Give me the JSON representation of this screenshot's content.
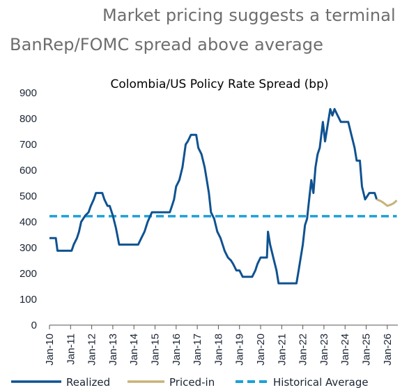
{
  "headline": {
    "line1": "Market pricing suggests a terminal",
    "line2": "BanRep/FOMC spread above average"
  },
  "colors": {
    "realized": "#0f5291",
    "priced_in": "#c8b27a",
    "historical_average": "#1ea0d8",
    "axis": "#555555",
    "text": "#1b2433"
  },
  "chart_data": {
    "type": "line",
    "title": "Colombia/US Policy Rate Spread (bp)",
    "xlabel": "",
    "ylabel": "",
    "ylim": [
      0,
      900
    ],
    "yticks": [
      0,
      100,
      200,
      300,
      400,
      500,
      600,
      700,
      800,
      900
    ],
    "xlim": [
      2010.0,
      2026.5
    ],
    "xticks": [
      {
        "x": 2010,
        "label": "Jan-10"
      },
      {
        "x": 2011,
        "label": "Jan-11"
      },
      {
        "x": 2012,
        "label": "Jan-12"
      },
      {
        "x": 2013,
        "label": "Jan-13"
      },
      {
        "x": 2014,
        "label": "Jan-14"
      },
      {
        "x": 2015,
        "label": "Jan-15"
      },
      {
        "x": 2016,
        "label": "Jan-16"
      },
      {
        "x": 2017,
        "label": "Jan-17"
      },
      {
        "x": 2018,
        "label": "Jan-18"
      },
      {
        "x": 2019,
        "label": "Jan-19"
      },
      {
        "x": 2020,
        "label": "Jan-20"
      },
      {
        "x": 2021,
        "label": "Jan-21"
      },
      {
        "x": 2022,
        "label": "Jan-22"
      },
      {
        "x": 2023,
        "label": "Jan-23"
      },
      {
        "x": 2024,
        "label": "Jan-24"
      },
      {
        "x": 2025,
        "label": "Jan-25"
      },
      {
        "x": 2026,
        "label": "Jan-26"
      }
    ],
    "legend_position": "bottom",
    "series": [
      {
        "name": "Realized",
        "style": "solid",
        "color": "#0f5291",
        "points": [
          [
            2010.0,
            337
          ],
          [
            2010.3,
            337
          ],
          [
            2010.38,
            288
          ],
          [
            2010.8,
            288
          ],
          [
            2011.05,
            288
          ],
          [
            2011.15,
            312
          ],
          [
            2011.3,
            337
          ],
          [
            2011.4,
            362
          ],
          [
            2011.5,
            400
          ],
          [
            2011.7,
            425
          ],
          [
            2011.85,
            437
          ],
          [
            2011.95,
            460
          ],
          [
            2012.1,
            487
          ],
          [
            2012.2,
            512
          ],
          [
            2012.5,
            512
          ],
          [
            2012.6,
            487
          ],
          [
            2012.75,
            462
          ],
          [
            2012.85,
            462
          ],
          [
            2013.0,
            425
          ],
          [
            2013.15,
            375
          ],
          [
            2013.3,
            312
          ],
          [
            2013.8,
            312
          ],
          [
            2014.2,
            312
          ],
          [
            2014.35,
            337
          ],
          [
            2014.5,
            362
          ],
          [
            2014.65,
            400
          ],
          [
            2014.85,
            437
          ],
          [
            2015.0,
            437
          ],
          [
            2015.5,
            437
          ],
          [
            2015.7,
            437
          ],
          [
            2015.8,
            462
          ],
          [
            2015.9,
            487
          ],
          [
            2016.0,
            537
          ],
          [
            2016.15,
            562
          ],
          [
            2016.3,
            612
          ],
          [
            2016.45,
            700
          ],
          [
            2016.55,
            712
          ],
          [
            2016.7,
            737
          ],
          [
            2016.95,
            737
          ],
          [
            2017.05,
            687
          ],
          [
            2017.2,
            662
          ],
          [
            2017.35,
            612
          ],
          [
            2017.45,
            562
          ],
          [
            2017.55,
            512
          ],
          [
            2017.65,
            437
          ],
          [
            2017.8,
            412
          ],
          [
            2017.95,
            362
          ],
          [
            2018.1,
            337
          ],
          [
            2018.2,
            312
          ],
          [
            2018.3,
            287
          ],
          [
            2018.45,
            262
          ],
          [
            2018.6,
            250
          ],
          [
            2018.7,
            237
          ],
          [
            2018.85,
            212
          ],
          [
            2019.0,
            212
          ],
          [
            2019.15,
            187
          ],
          [
            2019.5,
            187
          ],
          [
            2019.6,
            187
          ],
          [
            2019.75,
            212
          ],
          [
            2019.85,
            237
          ],
          [
            2020.0,
            262
          ],
          [
            2020.2,
            262
          ],
          [
            2020.3,
            262
          ],
          [
            2020.35,
            362
          ],
          [
            2020.45,
            312
          ],
          [
            2020.6,
            262
          ],
          [
            2020.75,
            212
          ],
          [
            2020.85,
            162
          ],
          [
            2021.5,
            162
          ],
          [
            2021.7,
            162
          ],
          [
            2021.8,
            212
          ],
          [
            2021.9,
            262
          ],
          [
            2022.0,
            312
          ],
          [
            2022.1,
            387
          ],
          [
            2022.2,
            412
          ],
          [
            2022.3,
            487
          ],
          [
            2022.4,
            562
          ],
          [
            2022.5,
            512
          ],
          [
            2022.6,
            612
          ],
          [
            2022.7,
            662
          ],
          [
            2022.8,
            687
          ],
          [
            2022.95,
            787
          ],
          [
            2023.05,
            712
          ],
          [
            2023.2,
            787
          ],
          [
            2023.3,
            837
          ],
          [
            2023.4,
            812
          ],
          [
            2023.5,
            837
          ],
          [
            2023.65,
            812
          ],
          [
            2023.8,
            787
          ],
          [
            2024.15,
            787
          ],
          [
            2024.3,
            737
          ],
          [
            2024.45,
            687
          ],
          [
            2024.55,
            637
          ],
          [
            2024.7,
            637
          ],
          [
            2024.8,
            537
          ],
          [
            2024.95,
            487
          ],
          [
            2025.15,
            512
          ],
          [
            2025.4,
            512
          ],
          [
            2025.5,
            487
          ]
        ]
      },
      {
        "name": "Priced-in",
        "style": "solid",
        "color": "#c8b27a",
        "points": [
          [
            2025.5,
            487
          ],
          [
            2025.7,
            480
          ],
          [
            2025.85,
            472
          ],
          [
            2026.0,
            462
          ],
          [
            2026.15,
            466
          ],
          [
            2026.3,
            472
          ],
          [
            2026.45,
            483
          ]
        ]
      },
      {
        "name": "Historical Average",
        "style": "dashed",
        "color": "#1ea0d8",
        "points": [
          [
            2010.0,
            422
          ],
          [
            2026.45,
            422
          ]
        ]
      }
    ]
  }
}
